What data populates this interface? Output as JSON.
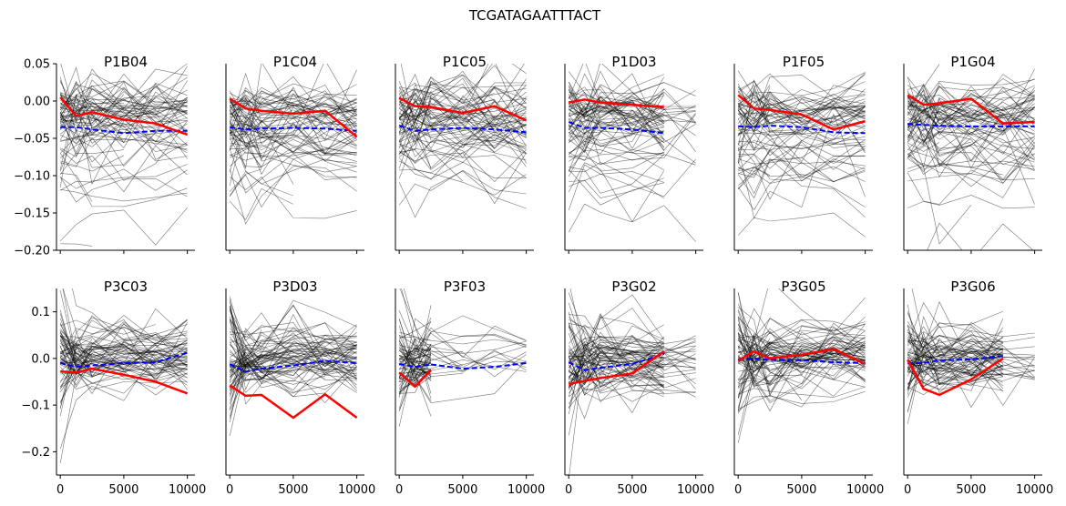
{
  "chart_data": {
    "type": "line",
    "title": "TCGATAGAATTTACT",
    "legend": "none",
    "grid": false,
    "xlim": [
      -300,
      10600
    ],
    "xticks": [
      0,
      5000,
      10000
    ],
    "rows": [
      {
        "ylim": [
          -0.2,
          0.05
        ],
        "yticks": [
          0.05,
          0.0,
          -0.05,
          -0.1,
          -0.15,
          -0.2
        ],
        "ytick_labels": [
          "0.05",
          "0.00",
          "−0.05",
          "−0.10",
          "−0.15",
          "−0.20"
        ]
      },
      {
        "ylim": [
          -0.25,
          0.15
        ],
        "yticks": [
          0.1,
          0.0,
          -0.1,
          -0.2
        ],
        "ytick_labels": [
          "0.1",
          "0.0",
          "−0.1",
          "−0.2"
        ]
      }
    ],
    "colors": {
      "background": "#000000",
      "highlight": "#ff0000",
      "mean": "#0000ff"
    },
    "panels": [
      {
        "title": "P1B04",
        "row": 0,
        "col": 0,
        "x": [
          0,
          1250,
          2500,
          5000,
          7500,
          10000
        ],
        "highlight": [
          0.005,
          -0.02,
          -0.015,
          -0.025,
          -0.03,
          -0.045
        ],
        "mean": [
          -0.035,
          -0.035,
          -0.038,
          -0.043,
          -0.04,
          -0.04
        ]
      },
      {
        "title": "P1C04",
        "row": 0,
        "col": 1,
        "x": [
          0,
          1250,
          2500,
          5000,
          7500,
          10000
        ],
        "highlight": [
          0.003,
          -0.01,
          -0.013,
          -0.017,
          -0.013,
          -0.048
        ],
        "mean": [
          -0.035,
          -0.038,
          -0.037,
          -0.036,
          -0.037,
          -0.04
        ]
      },
      {
        "title": "P1C05",
        "row": 0,
        "col": 2,
        "x": [
          0,
          1250,
          2500,
          5000,
          7500,
          10000
        ],
        "highlight": [
          0.004,
          -0.007,
          -0.008,
          -0.016,
          -0.007,
          -0.026
        ],
        "mean": [
          -0.033,
          -0.04,
          -0.038,
          -0.036,
          -0.038,
          -0.042
        ]
      },
      {
        "title": "P1D03",
        "row": 0,
        "col": 3,
        "x": [
          0,
          1250,
          2500,
          5000,
          7500
        ],
        "highlight": [
          -0.002,
          0.002,
          -0.002,
          -0.005,
          -0.008
        ],
        "mean": [
          -0.028,
          -0.036,
          -0.036,
          -0.038,
          -0.043
        ]
      },
      {
        "title": "P1F05",
        "row": 0,
        "col": 4,
        "x": [
          0,
          1250,
          2500,
          5000,
          7500,
          10000
        ],
        "highlight": [
          0.008,
          -0.01,
          -0.012,
          -0.018,
          -0.038,
          -0.027
        ],
        "mean": [
          -0.034,
          -0.035,
          -0.033,
          -0.035,
          -0.042,
          -0.043
        ]
      },
      {
        "title": "P1G04",
        "row": 0,
        "col": 5,
        "x": [
          0,
          1250,
          2500,
          5000,
          7500,
          10000
        ],
        "highlight": [
          0.008,
          -0.005,
          -0.003,
          0.003,
          -0.03,
          -0.028
        ],
        "mean": [
          -0.031,
          -0.032,
          -0.033,
          -0.034,
          -0.034,
          -0.034
        ]
      },
      {
        "title": "P3C03",
        "row": 1,
        "col": 0,
        "x": [
          0,
          1250,
          2500,
          5000,
          7500,
          10000
        ],
        "highlight": [
          -0.028,
          -0.03,
          -0.022,
          -0.035,
          -0.05,
          -0.075
        ],
        "mean": [
          -0.01,
          -0.018,
          -0.015,
          -0.01,
          -0.008,
          0.012
        ]
      },
      {
        "title": "P3D03",
        "row": 1,
        "col": 1,
        "x": [
          0,
          1250,
          2500,
          5000,
          7500,
          10000
        ],
        "highlight": [
          -0.058,
          -0.08,
          -0.078,
          -0.127,
          -0.077,
          -0.127
        ],
        "mean": [
          -0.012,
          -0.028,
          -0.022,
          -0.015,
          -0.005,
          -0.01
        ]
      },
      {
        "title": "P3F03",
        "row": 1,
        "col": 2,
        "x": [
          0,
          1250,
          2500
        ],
        "highlight": [
          -0.03,
          -0.06,
          -0.025
        ],
        "mean": [
          -0.012,
          -0.018,
          -0.013
        ],
        "mean2_x": [
          2500,
          5000,
          7500,
          10000
        ],
        "mean2": [
          -0.013,
          -0.022,
          -0.018,
          -0.01
        ]
      },
      {
        "title": "P3G02",
        "row": 1,
        "col": 3,
        "x": [
          0,
          1250,
          2500,
          5000,
          7500
        ],
        "highlight": [
          -0.055,
          -0.048,
          -0.042,
          -0.032,
          0.015
        ],
        "mean": [
          -0.008,
          -0.025,
          -0.02,
          -0.012,
          0.01
        ]
      },
      {
        "title": "P3G05",
        "row": 1,
        "col": 4,
        "x": [
          0,
          1250,
          2500,
          5000,
          7500,
          10000
        ],
        "highlight": [
          -0.005,
          0.015,
          0.0,
          0.008,
          0.02,
          -0.012
        ],
        "mean": [
          -0.002,
          0.0,
          -0.003,
          -0.004,
          -0.008,
          -0.01
        ]
      },
      {
        "title": "P3G06",
        "row": 1,
        "col": 5,
        "x": [
          0,
          1250,
          2500,
          5000,
          7500
        ],
        "highlight": [
          -0.003,
          -0.065,
          -0.078,
          -0.045,
          0.0
        ],
        "mean": [
          -0.01,
          -0.01,
          -0.004,
          -0.002,
          0.005
        ]
      }
    ]
  }
}
